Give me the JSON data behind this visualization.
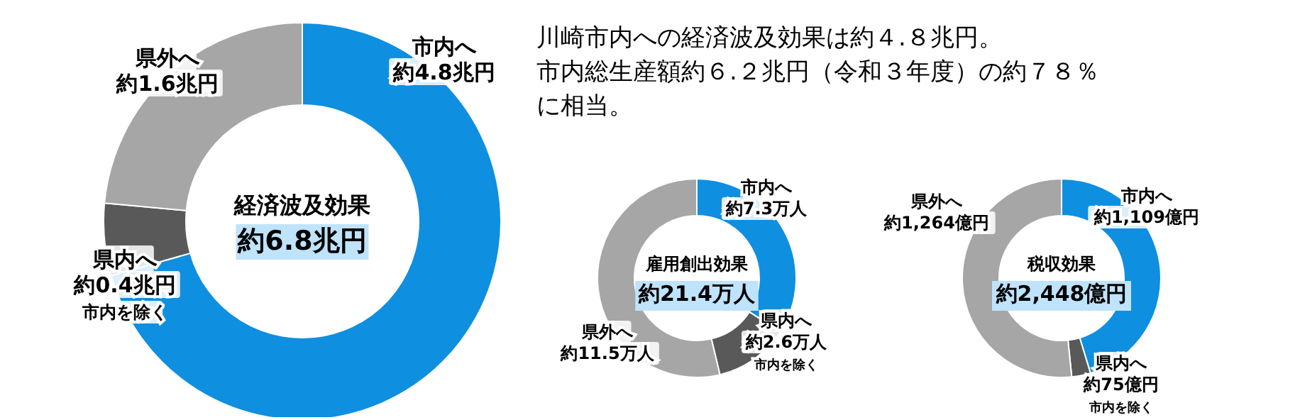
{
  "chart_data": [
    {
      "type": "donut",
      "title": "経済波及効果",
      "subtitle": "約6.8兆円",
      "categories": [
        "市内へ",
        "県内へ",
        "県外へ"
      ],
      "values": [
        4.8,
        0.4,
        1.6
      ],
      "colors": [
        "#0e8fe0",
        "#595959",
        "#a6a6a6"
      ],
      "value_labels": [
        "約4.8兆円",
        "約0.4兆円",
        "約1.6兆円"
      ],
      "annotations": [
        {
          "text": "市内を除く",
          "x": "県内へ"
        }
      ]
    },
    {
      "type": "donut",
      "title": "雇用創出効果",
      "subtitle": "約21.4万人",
      "categories": [
        "市内へ",
        "県内へ",
        "県外へ"
      ],
      "values": [
        7.3,
        2.6,
        11.5
      ],
      "colors": [
        "#0e8fe0",
        "#595959",
        "#a6a6a6"
      ],
      "value_labels": [
        "約7.3万人",
        "約2.6万人",
        "約11.5万人"
      ],
      "annotations": [
        {
          "text": "市内を除く",
          "x": "県内へ"
        }
      ]
    },
    {
      "type": "donut",
      "title": "税収効果",
      "subtitle": "約2,448億円",
      "categories": [
        "市内へ",
        "県内へ",
        "県外へ"
      ],
      "values": [
        1109,
        75,
        1264
      ],
      "colors": [
        "#0e8fe0",
        "#595959",
        "#a6a6a6"
      ],
      "value_labels": [
        "約1,109億円",
        "約75億円",
        "約1,264億円"
      ],
      "annotations": [
        {
          "text": "市内を除く",
          "x": "県内へ"
        }
      ]
    },
    {
      "type": "other",
      "annotations": [
        "川崎市内への経済波及効果は約４.８兆円。",
        "市内総生産額約６.２兆円（令和３年度）の約７８％に相当。"
      ]
    }
  ]
}
